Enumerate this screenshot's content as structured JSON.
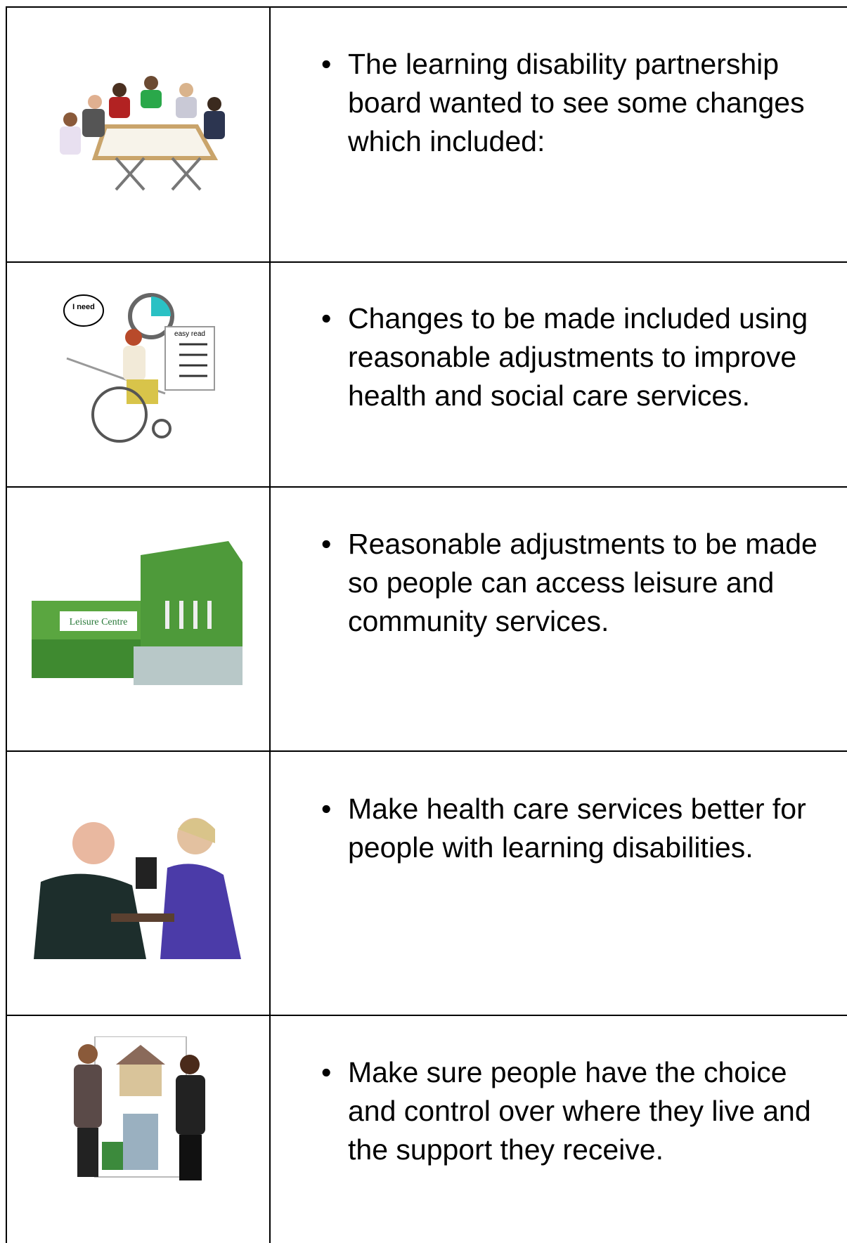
{
  "rows": [
    {
      "text": "The learning disability partnership board wanted to see some changes which included:"
    },
    {
      "text": "Changes to be made included using reasonable adjustments to improve health and social care services.",
      "image_text": [
        "I need",
        "easy read"
      ]
    },
    {
      "text": "Reasonable adjustments to be made so people can access leisure and community services.",
      "image_text": [
        "Leisure Centre"
      ]
    },
    {
      "text": "Make health care services better for people with learning disabilities."
    },
    {
      "text": "Make sure people have the choice and control over where they live and the support they receive."
    }
  ]
}
